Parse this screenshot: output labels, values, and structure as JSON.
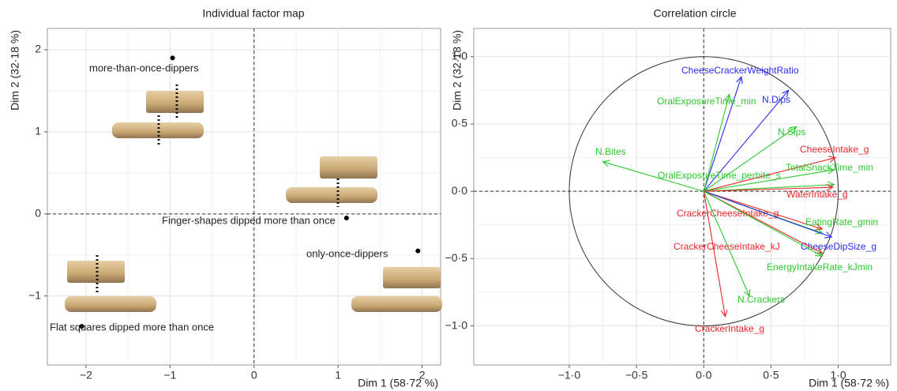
{
  "chart_data": [
    {
      "type": "scatter",
      "title": "Individual factor map",
      "x_label": "Dim 1 (58·72 %)",
      "y_label": "Dim 2 (32·18 %)",
      "point_labels": [
        "more-than-once-dippers",
        "Finger-shapes dipped more than once",
        "only-once-dippers",
        "Flat squares dipped more than once"
      ],
      "x": [
        -0.97,
        1.1,
        1.95,
        -2.05
      ],
      "values": [
        1.9,
        -0.05,
        -0.45,
        -1.37
      ],
      "color": "#000000",
      "xlim": [
        -2.46,
        2.22
      ],
      "ylim": [
        -1.84,
        2.26
      ],
      "xticks": [
        {
          "value": -2,
          "label": "−2"
        },
        {
          "value": -1,
          "label": "−1"
        },
        0,
        1,
        2
      ],
      "yticks": [
        {
          "value": -1,
          "label": "−1"
        },
        0,
        1,
        2
      ],
      "grid": true
    },
    {
      "type": "arrows",
      "title": "Correlation circle",
      "x_label": "Dim 1 (58·72 %)",
      "y_label": "Dim 2 (32·18 %)",
      "arrows": [
        {
          "label": "CheeseCrackerWeightRatio",
          "x": 0.28,
          "y": 0.85,
          "color": "#2b2bf0"
        },
        {
          "label": "N.Dips",
          "x": 0.63,
          "y": 0.75,
          "color": "#2b2bf0"
        },
        {
          "label": "OralExposureTime_min",
          "x": 0.19,
          "y": 0.72,
          "color": "#2ec72e"
        },
        {
          "label": "N.Sips",
          "x": 0.69,
          "y": 0.48,
          "color": "#2ec72e"
        },
        {
          "label": "N.Bites",
          "x": -0.75,
          "y": 0.22,
          "color": "#2ec72e"
        },
        {
          "label": "CheeseIntake_g",
          "x": 0.98,
          "y": 0.25,
          "color": "#e8262a"
        },
        {
          "label": "TotalSnackTime_min",
          "x": 0.97,
          "y": 0.16,
          "color": "#2ec72e"
        },
        {
          "label": "OralExposureTime_perbite_s",
          "x": 0.97,
          "y": 0.05,
          "color": "#2ec72e"
        },
        {
          "label": "WaterIntake_g",
          "x": 0.96,
          "y": 0.03,
          "color": "#e8262a"
        },
        {
          "label": "CrackerCheeseIntake_g",
          "x": 0.88,
          "y": -0.28,
          "color": "#e8262a"
        },
        {
          "label": "EatingRate_gmin",
          "x": 0.88,
          "y": -0.31,
          "color": "#2ec72e"
        },
        {
          "label": "CheeseDipSize_g",
          "x": 0.95,
          "y": -0.34,
          "color": "#2b2bf0"
        },
        {
          "label": "CrackerCheeseIntake_kJ",
          "x": 0.88,
          "y": -0.46,
          "color": "#e8262a"
        },
        {
          "label": "EnergyIntakeRate_kJmin",
          "x": 0.88,
          "y": -0.48,
          "color": "#2ec72e"
        },
        {
          "label": "N.Crackers",
          "x": 0.34,
          "y": -0.78,
          "color": "#2ec72e"
        },
        {
          "label": "CrackerIntake_g",
          "x": 0.16,
          "y": -0.93,
          "color": "#e8262a"
        }
      ],
      "xlim": [
        -1.71,
        1.39
      ],
      "ylim": [
        -1.29,
        1.21
      ],
      "xticks": [
        {
          "value": -1,
          "label": "−1·0"
        },
        {
          "value": -0.5,
          "label": "−0·5"
        },
        {
          "value": 0,
          "label": "0·0"
        },
        {
          "value": 0.5,
          "label": "0·5"
        },
        {
          "value": 1,
          "label": "1·0"
        }
      ],
      "yticks": [
        {
          "value": -1,
          "label": "−1·0"
        },
        {
          "value": -0.5,
          "label": "−0·5"
        },
        {
          "value": 0,
          "label": "0·0"
        },
        {
          "value": 0.5,
          "label": "0·5"
        },
        {
          "value": 1,
          "label": "1·0"
        }
      ],
      "grid": true
    }
  ]
}
